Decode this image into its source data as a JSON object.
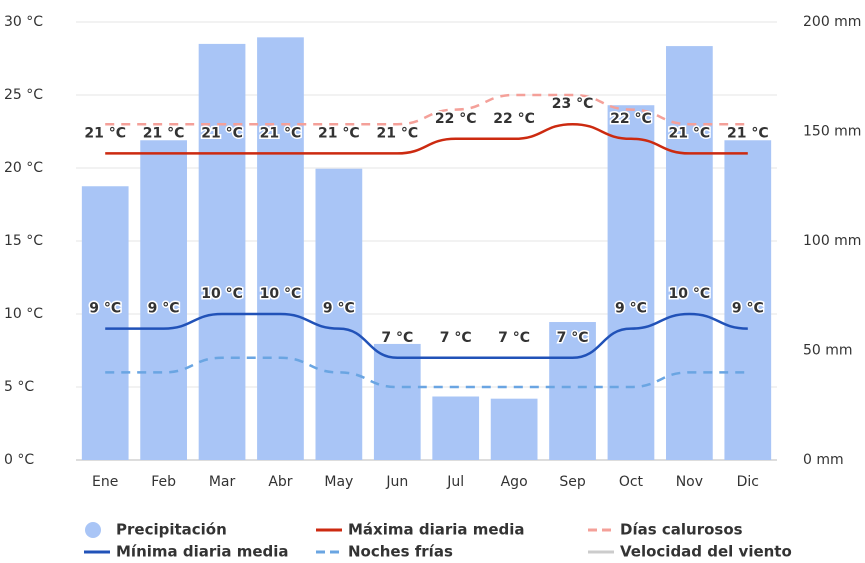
{
  "chart_data": {
    "type": "combo",
    "categories": [
      "Ene",
      "Feb",
      "Mar",
      "Abr",
      "May",
      "Jun",
      "Jul",
      "Ago",
      "Sep",
      "Oct",
      "Nov",
      "Dic"
    ],
    "ylim": [
      0,
      30
    ],
    "yticks": [
      {
        "value": 0,
        "label": "0 °C"
      },
      {
        "value": 5,
        "label": "5 °C"
      },
      {
        "value": 10,
        "label": "10 °C"
      },
      {
        "value": 15,
        "label": "15 °C"
      },
      {
        "value": 20,
        "label": "20 °C"
      },
      {
        "value": 25,
        "label": "25 °C"
      },
      {
        "value": 30,
        "label": "30 °C"
      }
    ],
    "y2lim": [
      0,
      200
    ],
    "y2ticks": [
      {
        "value": 0,
        "label": "0 mm"
      },
      {
        "value": 50,
        "label": "50 mm"
      },
      {
        "value": 100,
        "label": "100 mm"
      },
      {
        "value": 150,
        "label": "150 mm"
      },
      {
        "value": 200,
        "label": "200 mm"
      }
    ],
    "grid": true,
    "series": [
      {
        "name": "Precipitación",
        "type": "bar",
        "axis": "y2",
        "color": "#a9c5f6",
        "values": [
          125,
          146,
          190,
          193,
          133,
          53,
          29,
          28,
          63,
          162,
          189,
          146
        ]
      },
      {
        "name": "Máxima diaria media",
        "type": "line",
        "color": "#cc2a10",
        "values": [
          21,
          21,
          21,
          21,
          21,
          21,
          22,
          22,
          23,
          22,
          21,
          21
        ],
        "value_labels": [
          "21 °C",
          "21 °C",
          "21 °C",
          "21 °C",
          "21 °C",
          "21 °C",
          "22 °C",
          "22 °C",
          "23 °C",
          "22 °C",
          "21 °C",
          "21 °C"
        ]
      },
      {
        "name": "Días calurosos",
        "type": "dashed",
        "color": "#f4a099",
        "values": [
          23,
          23,
          23,
          23,
          23,
          23,
          24,
          25,
          25,
          24,
          23,
          23
        ]
      },
      {
        "name": "Mínima diaria media",
        "type": "line",
        "color": "#2152b8",
        "values": [
          9,
          9,
          10,
          10,
          9,
          7,
          7,
          7,
          7,
          9,
          10,
          9
        ],
        "value_labels": [
          "9 °C",
          "9 °C",
          "10 °C",
          "10 °C",
          "9 °C",
          "7 °C",
          "7 °C",
          "7 °C",
          "7 °C",
          "9 °C",
          "10 °C",
          "9 °C"
        ]
      },
      {
        "name": "Noches frías",
        "type": "dashed",
        "color": "#6aa5e2",
        "values": [
          6,
          6,
          7,
          7,
          6,
          5,
          5,
          5,
          5,
          5,
          6,
          6
        ]
      },
      {
        "name": "Velocidad del viento",
        "type": "line",
        "color": "#cccccc",
        "values": [
          null,
          null,
          null,
          null,
          null,
          null,
          null,
          null,
          null,
          null,
          null,
          null
        ]
      }
    ]
  }
}
